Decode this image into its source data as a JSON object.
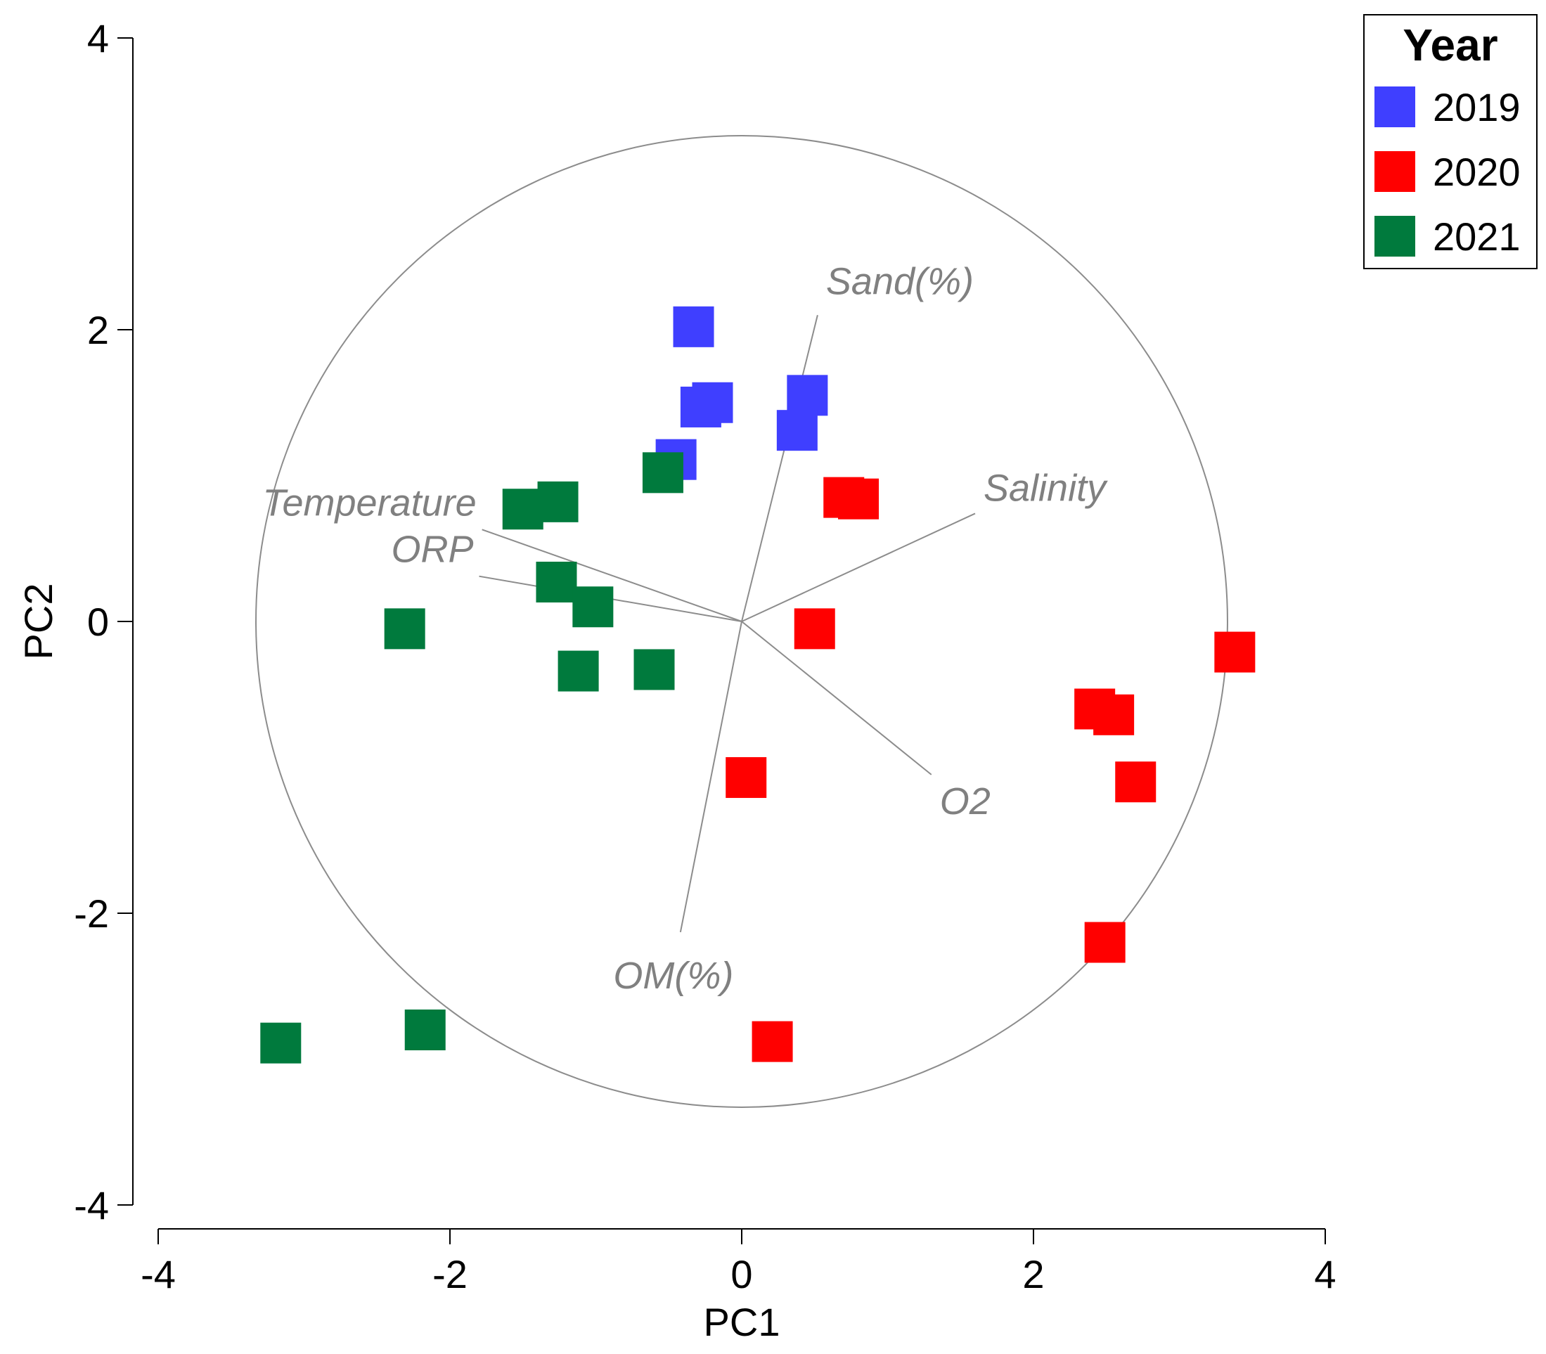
{
  "chart_data": {
    "type": "scatter",
    "title": "",
    "xlabel": "PC1",
    "ylabel": "PC2",
    "xlim": [
      -4,
      4
    ],
    "ylim": [
      -4,
      4
    ],
    "xticks": [
      "-4",
      "-2",
      "0",
      "2",
      "4"
    ],
    "yticks": [
      "-4",
      "-2",
      "0",
      "2",
      "4"
    ],
    "grid": false,
    "circle_radius": 3.33,
    "legend": {
      "title": "Year",
      "position": "top-right"
    },
    "series": [
      {
        "name": "2019",
        "color": "#3f3fff",
        "points": [
          {
            "x": -0.33,
            "y": 2.02
          },
          {
            "x": -0.28,
            "y": 1.47
          },
          {
            "x": -0.2,
            "y": 1.5
          },
          {
            "x": -0.45,
            "y": 1.11
          },
          {
            "x": 0.45,
            "y": 1.55
          },
          {
            "x": 0.38,
            "y": 1.31
          }
        ]
      },
      {
        "name": "2020",
        "color": "#ff0000",
        "points": [
          {
            "x": 0.7,
            "y": 0.85
          },
          {
            "x": 0.8,
            "y": 0.84
          },
          {
            "x": 0.5,
            "y": -0.05
          },
          {
            "x": 2.42,
            "y": -0.6
          },
          {
            "x": 2.55,
            "y": -0.64
          },
          {
            "x": 2.7,
            "y": -1.1
          },
          {
            "x": 3.38,
            "y": -0.21
          },
          {
            "x": 0.03,
            "y": -1.07
          },
          {
            "x": 2.49,
            "y": -2.2
          },
          {
            "x": 0.21,
            "y": -2.88
          }
        ]
      },
      {
        "name": "2021",
        "color": "#007a3d",
        "points": [
          {
            "x": -0.54,
            "y": 1.02
          },
          {
            "x": -1.5,
            "y": 0.77
          },
          {
            "x": -1.26,
            "y": 0.82
          },
          {
            "x": -1.27,
            "y": 0.27
          },
          {
            "x": -1.02,
            "y": 0.1
          },
          {
            "x": -2.31,
            "y": -0.05
          },
          {
            "x": -1.12,
            "y": -0.34
          },
          {
            "x": -0.6,
            "y": -0.33
          },
          {
            "x": -3.16,
            "y": -2.89
          },
          {
            "x": -2.17,
            "y": -2.8
          }
        ]
      }
    ],
    "vectors": [
      {
        "name": "Sand(%)",
        "x": 0.52,
        "y": 2.1
      },
      {
        "name": "Salinity",
        "x": 1.6,
        "y": 0.74
      },
      {
        "name": "Temperature",
        "x": -1.78,
        "y": 0.63
      },
      {
        "name": "ORP",
        "x": -1.8,
        "y": 0.31
      },
      {
        "name": "O2",
        "x": 1.3,
        "y": -1.05
      },
      {
        "name": "OM(%)",
        "x": -0.42,
        "y": -2.13
      }
    ]
  }
}
